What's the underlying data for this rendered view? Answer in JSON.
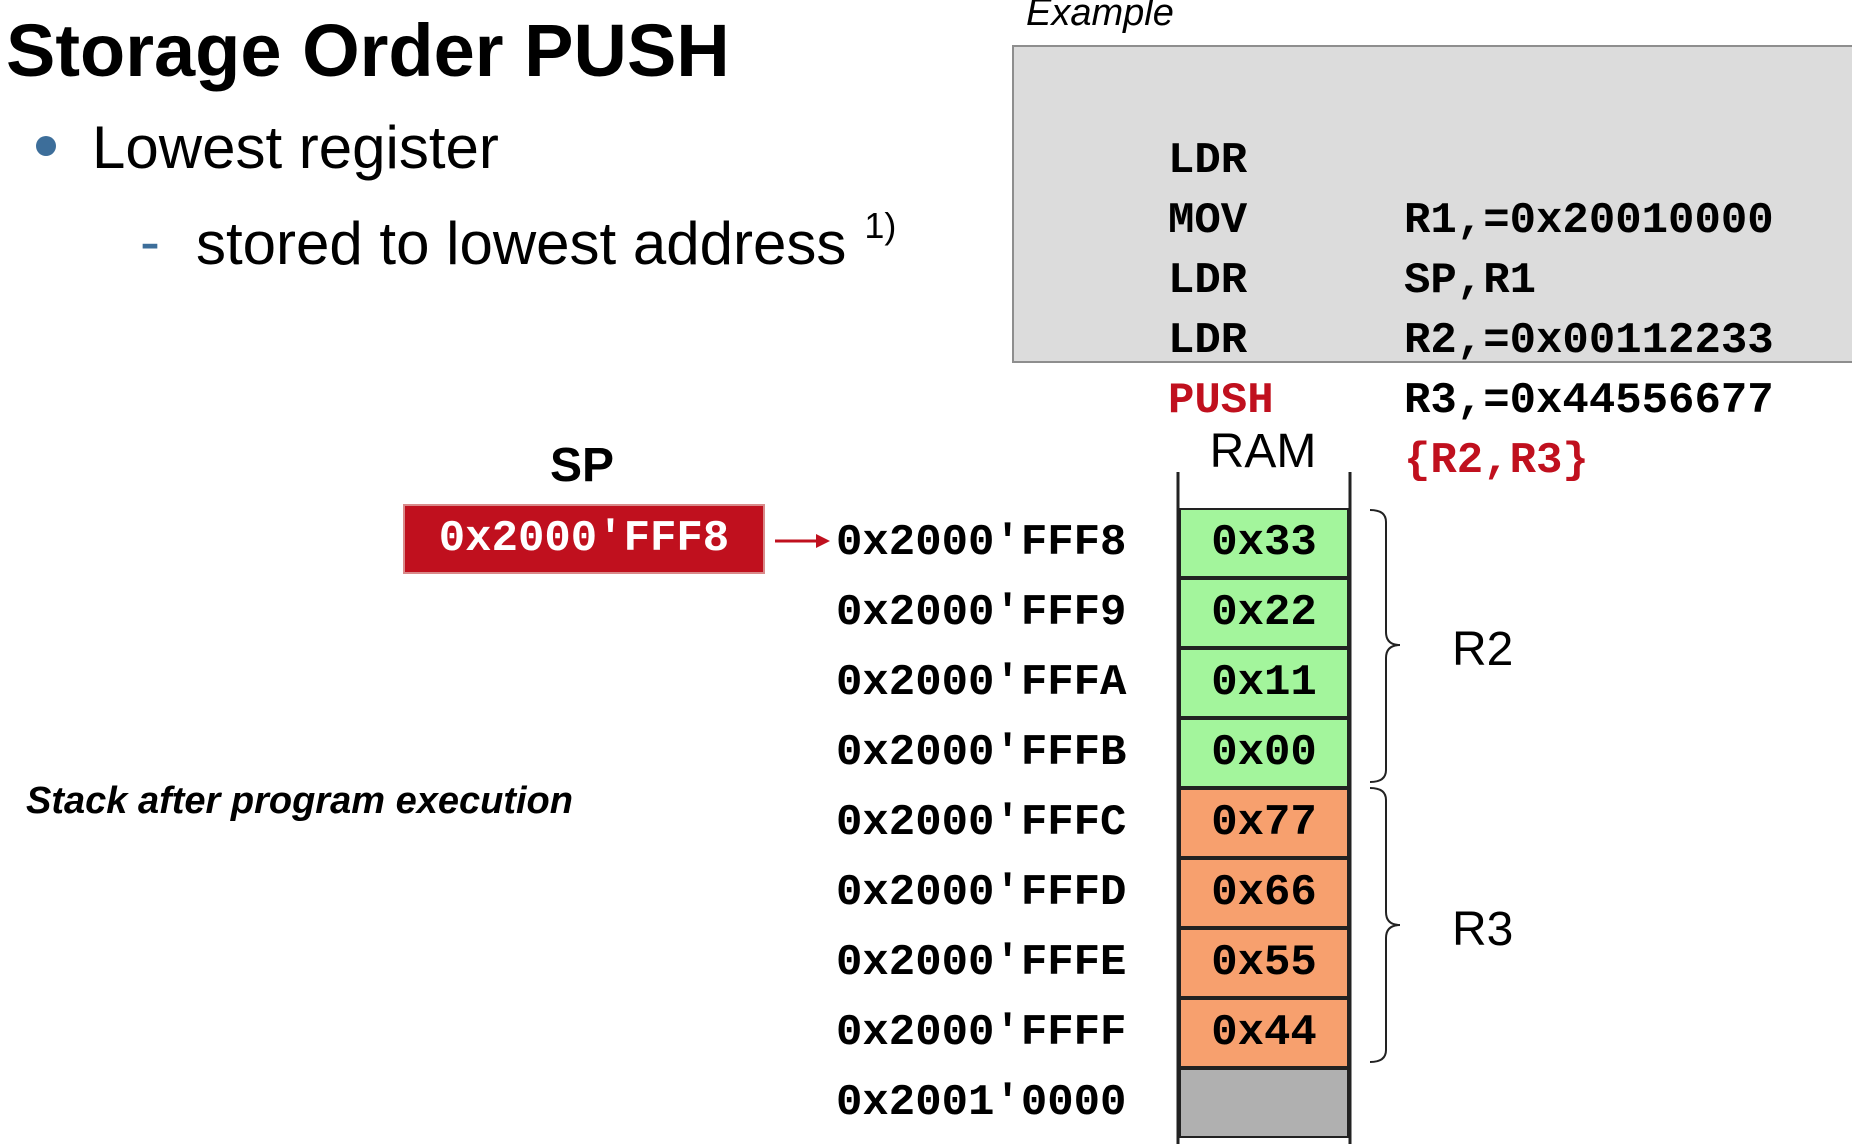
{
  "title": "Storage Order PUSH",
  "bullets": {
    "level1": "Lowest register",
    "level2_dash": "-",
    "level2": "stored to lowest address",
    "footnote": "1)"
  },
  "example": {
    "label": "Example",
    "lines": [
      {
        "op": "LDR",
        "arg": "R1,=0x20010000",
        "highlight": false
      },
      {
        "op": "MOV",
        "arg": "SP,R1",
        "highlight": false
      },
      {
        "op": "LDR",
        "arg": "R2,=0x00112233",
        "highlight": false
      },
      {
        "op": "LDR",
        "arg": "R3,=0x44556677",
        "highlight": false
      },
      {
        "op": "PUSH",
        "arg": "{R2,R3}",
        "highlight": true
      }
    ]
  },
  "sp": {
    "label": "SP",
    "value": "0x2000'FFF8"
  },
  "ram": {
    "label": "RAM",
    "rows": [
      {
        "address": "0x2000'FFF8",
        "value": "0x33",
        "group": "R2"
      },
      {
        "address": "0x2000'FFF9",
        "value": "0x22",
        "group": "R2"
      },
      {
        "address": "0x2000'FFFA",
        "value": "0x11",
        "group": "R2"
      },
      {
        "address": "0x2000'FFFB",
        "value": "0x00",
        "group": "R2"
      },
      {
        "address": "0x2000'FFFC",
        "value": "0x77",
        "group": "R3"
      },
      {
        "address": "0x2000'FFFD",
        "value": "0x66",
        "group": "R3"
      },
      {
        "address": "0x2000'FFFE",
        "value": "0x55",
        "group": "R3"
      },
      {
        "address": "0x2000'FFFF",
        "value": "0x44",
        "group": "R3"
      },
      {
        "address": "0x2001'0000",
        "value": "",
        "group": "none"
      }
    ]
  },
  "groups": {
    "r2": "R2",
    "r3": "R3"
  },
  "colors": {
    "r2_fill": "#a3f59c",
    "r3_fill": "#f7a06e",
    "empty_fill": "#b0b0b0",
    "accent_red": "#c0101e",
    "bullet_blue": "#3d6e9a"
  },
  "caption": "Stack after program execution"
}
